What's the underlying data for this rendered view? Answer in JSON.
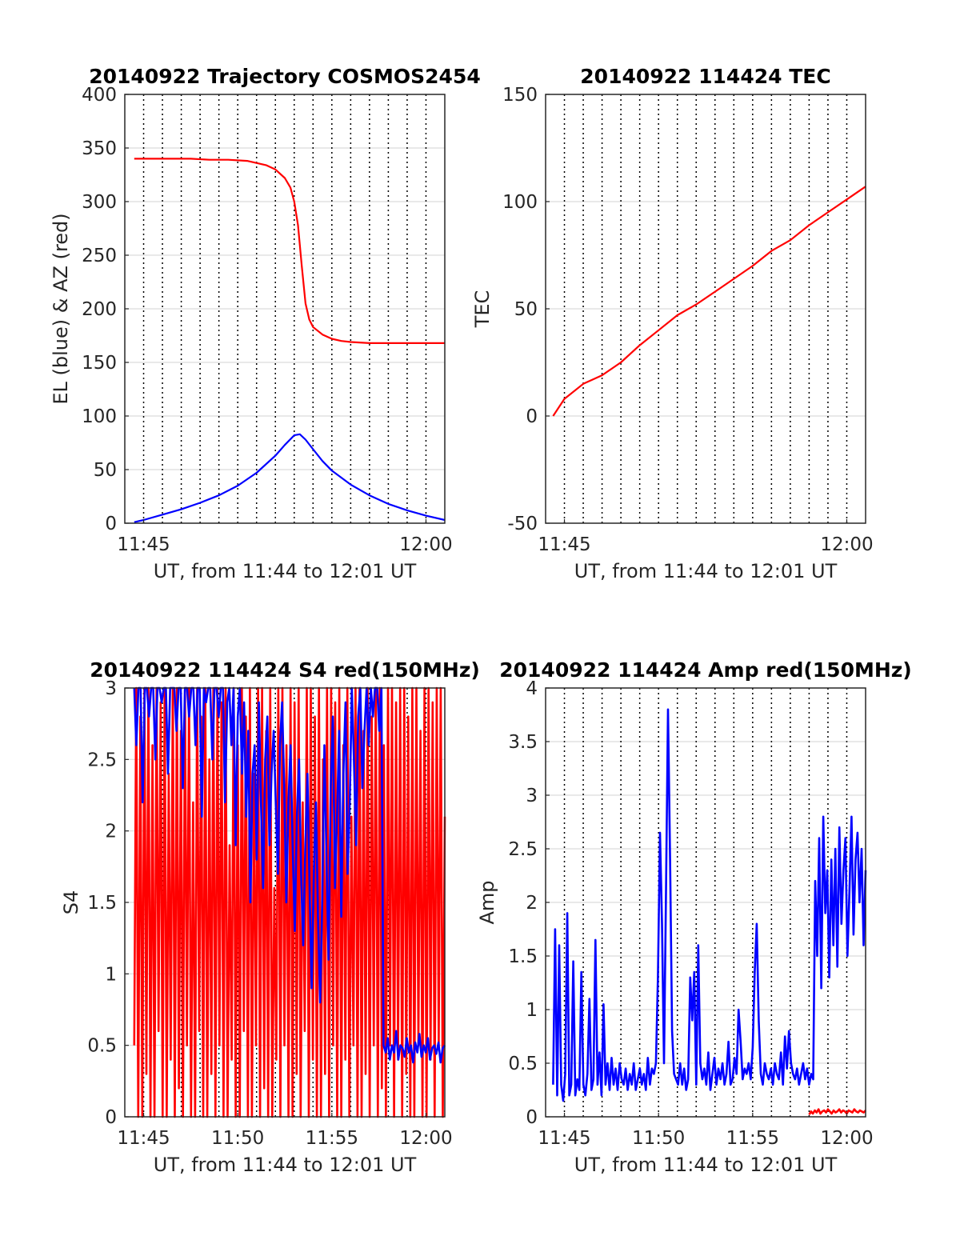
{
  "figure": {
    "background": "#ffffff"
  },
  "chart_data": [
    {
      "id": "trajectory",
      "type": "line",
      "title": "20140922 Trajectory COSMOS2454",
      "xlabel": "UT, from 11:44 to 12:01 UT",
      "ylabel": "EL (blue) & AZ (red)",
      "xlim": [
        "11:44",
        "12:01"
      ],
      "ylim": [
        0,
        400
      ],
      "yticks": [
        0,
        50,
        100,
        150,
        200,
        250,
        300,
        350,
        400
      ],
      "xticks": [
        "11:45",
        "12:00"
      ],
      "grid": true,
      "series": [
        {
          "color": "#ff0000",
          "x": [
            "11:44.5",
            "11:45.5",
            "11:46.5",
            "11:47.5",
            "11:48.5",
            "11:49.5",
            "11:50.5",
            "11:51.5",
            "11:52.0",
            "11:52.5",
            "11:52.8",
            "11:53.0",
            "11:53.2",
            "11:53.4",
            "11:53.6",
            "11:53.8",
            "11:54.0",
            "11:54.5",
            "11:55.0",
            "11:55.5",
            "11:56.0",
            "11:57.0",
            "11:58.0",
            "11:59.0",
            "12:00.0",
            "12:01.0"
          ],
          "values": [
            340,
            340,
            340,
            340,
            339,
            339,
            338,
            334,
            330,
            322,
            313,
            300,
            278,
            240,
            205,
            190,
            183,
            176,
            172,
            170,
            169,
            168,
            168,
            168,
            168,
            168
          ]
        },
        {
          "color": "#0000ff",
          "x": [
            "11:44.5",
            "11:45.0",
            "11:46.0",
            "11:47.0",
            "11:48.0",
            "11:49.0",
            "11:50.0",
            "11:51.0",
            "11:52.0",
            "11:52.5",
            "11:53.0",
            "11:53.3",
            "11:53.6",
            "11:54.0",
            "11:54.5",
            "11:55.0",
            "11:56.0",
            "11:57.0",
            "11:58.0",
            "11:59.0",
            "12:00.0",
            "12:01.0"
          ],
          "values": [
            1,
            3,
            8,
            13,
            19,
            26,
            35,
            47,
            63,
            73,
            82,
            83,
            78,
            69,
            58,
            49,
            36,
            26,
            18,
            12,
            7,
            3
          ]
        }
      ]
    },
    {
      "id": "tec",
      "type": "line",
      "title": "20140922 114424 TEC",
      "xlabel": "UT, from 11:44 to 12:01 UT",
      "ylabel": "TEC",
      "xlim": [
        "11:44",
        "12:01"
      ],
      "ylim": [
        -50,
        150
      ],
      "yticks": [
        -50,
        0,
        50,
        100,
        150
      ],
      "xticks": [
        "11:45",
        "12:00"
      ],
      "grid": true,
      "series": [
        {
          "color": "#ff0000",
          "x": [
            "11:44.4",
            "11:45.0",
            "11:46.0",
            "11:47.0",
            "11:48.0",
            "11:49.0",
            "11:50.0",
            "11:51.0",
            "11:52.0",
            "11:53.0",
            "11:54.0",
            "11:55.0",
            "11:56.0",
            "11:57.0",
            "11:58.0",
            "11:59.0",
            "12:00.0",
            "12:01.0"
          ],
          "values": [
            0,
            8,
            15,
            19,
            25,
            33,
            40,
            47,
            52,
            58,
            64,
            70,
            77,
            82,
            89,
            95,
            101,
            107
          ]
        }
      ]
    },
    {
      "id": "s4",
      "type": "line",
      "title": "20140922 114424 S4 red(150MHz)",
      "xlabel": "UT, from 11:44 to 12:01 UT",
      "ylabel": "S4",
      "xlim": [
        "11:44",
        "12:01"
      ],
      "ylim": [
        0,
        3
      ],
      "yticks": [
        0,
        0.5,
        1,
        1.5,
        2,
        2.5,
        3
      ],
      "xticks": [
        "11:45",
        "11:50",
        "11:55",
        "12:00"
      ],
      "grid": true,
      "series": [
        {
          "color": "#ff0000",
          "note_x_step_min": 0.1,
          "x_start": "11:44.5",
          "x_end": "12:01.0",
          "values": [
            0.5,
            3,
            0,
            2.8,
            0,
            3,
            0.3,
            3,
            0,
            2.6,
            0,
            3,
            0.6,
            2.9,
            0,
            3,
            0,
            2.4,
            0.4,
            3,
            0,
            3,
            0.2,
            2.7,
            0,
            3,
            0.5,
            3,
            0,
            2.2,
            0,
            3,
            0.6,
            2.8,
            0,
            3,
            0,
            2.5,
            0.3,
            3,
            0,
            3,
            0.5,
            2.9,
            0,
            3,
            0,
            1.9,
            0.4,
            3,
            0,
            2.6,
            0,
            3,
            0.6,
            2.8,
            0,
            3,
            0,
            2.4,
            0.5,
            3,
            0,
            3,
            0.2,
            2.7,
            0,
            3,
            0,
            1.6,
            0.4,
            3,
            0,
            3,
            0.5,
            2.6,
            0,
            3,
            0,
            2.9,
            0.3,
            3,
            0,
            2.2,
            0.6,
            3,
            0,
            3,
            0.4,
            2.8,
            0,
            3,
            0,
            2.5,
            0.3,
            3,
            0,
            3,
            0.5,
            2.9,
            0,
            3,
            0,
            2.6,
            0.4,
            3,
            0,
            2.1,
            0.5,
            3,
            0,
            3,
            0,
            2.7,
            0.3,
            3,
            0,
            2.8,
            0.5,
            3,
            0,
            3,
            0.2,
            2.6,
            0,
            3,
            0.5,
            3,
            0,
            2.9,
            0.4,
            3,
            0,
            3,
            0.3,
            2.8,
            0,
            3,
            0,
            3,
            0.5,
            2.7,
            0,
            3,
            0,
            3,
            0.4,
            2.9,
            0,
            3,
            0.5,
            3,
            0,
            2.1
          ]
        },
        {
          "color": "#0000ff",
          "note_x_step_min": 0.1,
          "x_start": "11:44.5",
          "x_end": "12:01.0",
          "values": [
            3,
            2.6,
            3,
            3,
            2.2,
            3,
            3,
            2.8,
            3,
            3,
            2.5,
            3,
            3,
            2.9,
            3,
            3,
            2.4,
            3,
            3,
            3,
            2.7,
            3,
            3,
            2.3,
            3,
            3,
            2.8,
            3,
            3,
            2.6,
            3,
            3,
            2.1,
            3,
            2.9,
            3,
            3,
            2.5,
            3,
            3,
            2.8,
            3,
            3,
            2.2,
            2.9,
            3,
            2.6,
            3,
            1.9,
            2.8,
            3,
            2.4,
            2.9,
            2.1,
            2.7,
            1.5,
            2.4,
            2.6,
            1.8,
            2.9,
            2.2,
            1.6,
            2.5,
            2.8,
            1.9,
            2.4,
            2.7,
            2.2,
            1.7,
            2.6,
            2.9,
            2.3,
            1.5,
            2.2,
            2.6,
            1.9,
            1.3,
            2.1,
            2.5,
            1.7,
            1.2,
            1.9,
            2.4,
            1.6,
            0.9,
            1.7,
            2.2,
            1.4,
            0.8,
            1.5,
            2.6,
            1.8,
            1.1,
            2.3,
            2.8,
            1.6,
            2.1,
            2.7,
            1.4,
            2.4,
            2.9,
            1.7,
            2.2,
            3,
            2.5,
            1.9,
            2.8,
            3,
            2.3,
            2.7,
            3,
            2.6,
            3,
            2.8,
            3,
            3,
            2.7,
            3,
            0.5,
            0.45,
            0.55,
            0.4,
            0.5,
            0.45,
            0.6,
            0.4,
            0.5,
            0.48,
            0.42,
            0.55,
            0.45,
            0.5,
            0.38,
            0.52,
            0.45,
            0.58,
            0.42,
            0.5,
            0.45,
            0.55,
            0.4,
            0.48,
            0.5,
            0.44,
            0.52,
            0.38,
            0.48,
            0.5
          ]
        }
      ]
    },
    {
      "id": "amp",
      "type": "line",
      "title": "20140922 114424 Amp red(150MHz)",
      "xlabel": "UT, from 11:44 to 12:01 UT",
      "ylabel": "Amp",
      "xlim": [
        "11:44",
        "12:01"
      ],
      "ylim": [
        0,
        4
      ],
      "yticks": [
        0,
        0.5,
        1,
        1.5,
        2,
        2.5,
        3,
        3.5,
        4
      ],
      "xticks": [
        "11:45",
        "11:50",
        "11:55",
        "12:00"
      ],
      "grid": true,
      "series": [
        {
          "color": "#ff0000",
          "note_x_step_min": 0.1,
          "x_start": "11:58.0",
          "x_end": "12:01.0",
          "values": [
            0.02,
            0.05,
            0.03,
            0.06,
            0.04,
            0.07,
            0.03,
            0.05,
            0.06,
            0.04,
            0.07,
            0.05,
            0.03,
            0.06,
            0.04,
            0.05,
            0.07,
            0.04,
            0.06,
            0.05,
            0.03,
            0.06,
            0.05,
            0.04,
            0.07,
            0.05,
            0.04,
            0.06,
            0.05,
            0.04,
            0.06
          ]
        },
        {
          "color": "#0000ff",
          "note_x_step_min": 0.1,
          "x_start": "11:44.4",
          "x_end": "12:01.0",
          "values": [
            0.3,
            1.75,
            0.2,
            1.6,
            0.3,
            0.15,
            0.4,
            1.9,
            0.2,
            0.3,
            1.45,
            0.2,
            0.35,
            0.25,
            1.35,
            0.3,
            0.2,
            0.4,
            1.1,
            0.25,
            0.35,
            1.65,
            0.3,
            0.6,
            0.2,
            1.05,
            0.3,
            0.5,
            0.25,
            0.55,
            0.3,
            0.45,
            0.25,
            0.5,
            0.35,
            0.3,
            0.45,
            0.25,
            0.4,
            0.3,
            0.5,
            0.25,
            0.35,
            0.45,
            0.3,
            0.4,
            0.25,
            0.55,
            0.3,
            0.45,
            0.4,
            0.5,
            1.3,
            2.65,
            1.8,
            0.5,
            2.1,
            3.8,
            2.4,
            0.8,
            0.4,
            0.35,
            0.3,
            0.5,
            0.3,
            0.45,
            0.25,
            0.35,
            1.3,
            0.9,
            1.35,
            0.3,
            1.6,
            0.5,
            0.35,
            0.45,
            0.3,
            0.6,
            0.25,
            0.4,
            0.55,
            0.3,
            0.45,
            0.35,
            0.5,
            0.3,
            0.4,
            0.7,
            0.3,
            0.35,
            0.55,
            0.4,
            1.0,
            0.7,
            0.35,
            0.45,
            0.4,
            0.5,
            0.35,
            0.65,
            1.35,
            1.8,
            0.9,
            0.4,
            0.3,
            0.5,
            0.4,
            0.35,
            0.45,
            0.3,
            0.5,
            0.4,
            0.35,
            0.6,
            0.3,
            0.75,
            0.45,
            0.8,
            0.5,
            0.4,
            0.35,
            0.45,
            0.3,
            0.4,
            0.5,
            0.35,
            0.45,
            0.3,
            0.4,
            0.35,
            2.2,
            1.5,
            2.6,
            1.2,
            2.8,
            1.9,
            2.3,
            1.3,
            2.4,
            1.6,
            2.5,
            1.4,
            2.7,
            1.8,
            2.3,
            2.6,
            1.5,
            2.1,
            2.8,
            1.7,
            2.4,
            2.65,
            2.0,
            2.5,
            1.6,
            2.3
          ]
        }
      ]
    }
  ]
}
